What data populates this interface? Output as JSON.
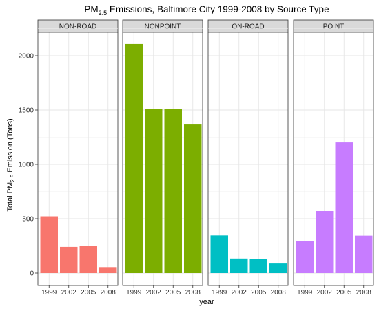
{
  "chart_data": {
    "type": "bar",
    "facet": true,
    "title": {
      "prefix": "PM",
      "subscript": "2.5",
      "suffix": " Emissions, Baltimore City 1999-2008 by Source Type"
    },
    "xlabel": "year",
    "ylabel": {
      "prefix": "Total PM",
      "subscript": "2.5",
      "suffix": " Emission (Tons)"
    },
    "ylim": [
      0,
      2350
    ],
    "yticks": [
      0,
      500,
      1000,
      1500,
      2000
    ],
    "ytick_labels": [
      "0",
      "500",
      "1000",
      "1500",
      "2000"
    ],
    "categories": [
      "1999",
      "2002",
      "2005",
      "2008"
    ],
    "grid": true,
    "legend": "none",
    "panels": [
      {
        "name": "NON-ROAD",
        "color": "#F8766D",
        "values": [
          522,
          241,
          248,
          55
        ]
      },
      {
        "name": "NONPOINT",
        "color": "#7CAE00",
        "values": [
          2108,
          1510,
          1510,
          1373
        ]
      },
      {
        "name": "ON-ROAD",
        "color": "#00BFC4",
        "values": [
          346,
          134,
          130,
          88
        ]
      },
      {
        "name": "POINT",
        "color": "#C77CFF",
        "values": [
          297,
          570,
          1202,
          344
        ]
      }
    ]
  }
}
